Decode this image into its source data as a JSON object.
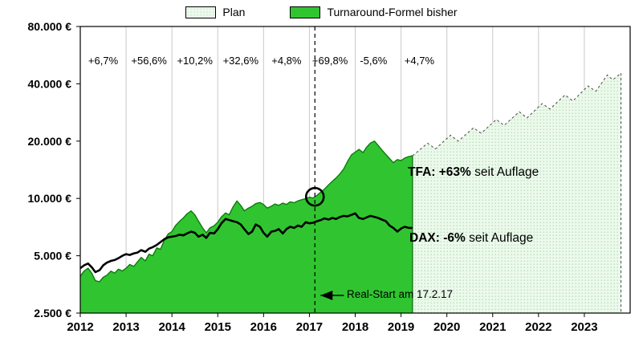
{
  "legend": {
    "plan_label": "Plan",
    "tfa_label": "Turnaround-Formel bisher"
  },
  "colors": {
    "tfa_fill": "#30c530",
    "tfa_edge": "#0e7a0e",
    "plan_fill": "#ecf9ec",
    "plan_dot": "#a8d8a8",
    "plan_edge": "#4a4a4a",
    "dax_line": "#000000",
    "grid": "#c9c9c9"
  },
  "annotations": {
    "tfa_bold": "TFA: +63%",
    "tfa_rest": " seit Auflage",
    "dax_bold": "DAX: -6%",
    "dax_rest": " seit Auflage",
    "real_start": "Real-Start am 17.2.17",
    "yearly_returns": [
      {
        "x": 2012.5,
        "label": "+6,7%"
      },
      {
        "x": 2013.5,
        "label": "+56,6%"
      },
      {
        "x": 2014.5,
        "label": "+10,2%"
      },
      {
        "x": 2015.5,
        "label": "+32,6%"
      },
      {
        "x": 2016.5,
        "label": "+4,8%"
      },
      {
        "x": 2017.45,
        "label": "+69,8%"
      },
      {
        "x": 2018.4,
        "label": "-5,6%"
      },
      {
        "x": 2019.4,
        "label": "+4,7%"
      }
    ]
  },
  "chart_data": {
    "type": "area",
    "y_scale": "log",
    "x_range": [
      2012,
      2024
    ],
    "y_range": [
      2500,
      80000
    ],
    "x_ticks": [
      2012,
      2013,
      2014,
      2015,
      2016,
      2017,
      2018,
      2019,
      2020,
      2021,
      2022,
      2023
    ],
    "y_ticks": [
      {
        "value": 80000,
        "label": "80.000 €"
      },
      {
        "value": 40000,
        "label": "40.000 €"
      },
      {
        "value": 20000,
        "label": "20.000 €"
      },
      {
        "value": 10000,
        "label": "10.000 €"
      },
      {
        "value": 5000,
        "label": "5.000 €"
      },
      {
        "value": 2500,
        "label": "2.500 €"
      }
    ],
    "real_start_x": 2017.12,
    "marker": {
      "x": 2017.12,
      "y": 10200
    },
    "series": [
      {
        "name": "Plan",
        "role": "plan",
        "points": [
          [
            2019.25,
            16750
          ],
          [
            2019.58,
            19500
          ],
          [
            2019.75,
            18200
          ],
          [
            2020.08,
            21500
          ],
          [
            2020.25,
            20000
          ],
          [
            2020.58,
            23500
          ],
          [
            2020.75,
            22000
          ],
          [
            2021.08,
            26000
          ],
          [
            2021.25,
            24200
          ],
          [
            2021.58,
            28500
          ],
          [
            2021.75,
            26500
          ],
          [
            2022.08,
            31500
          ],
          [
            2022.25,
            29500
          ],
          [
            2022.58,
            35000
          ],
          [
            2022.75,
            32500
          ],
          [
            2023.08,
            39000
          ],
          [
            2023.25,
            36500
          ],
          [
            2023.5,
            44500
          ],
          [
            2023.62,
            42000
          ],
          [
            2023.8,
            45500
          ]
        ]
      },
      {
        "name": "Turnaround-Formel bisher",
        "role": "tfa",
        "points": [
          [
            2012.0,
            3900
          ],
          [
            2012.08,
            4150
          ],
          [
            2012.17,
            4300
          ],
          [
            2012.25,
            4050
          ],
          [
            2012.33,
            3700
          ],
          [
            2012.42,
            3650
          ],
          [
            2012.5,
            3850
          ],
          [
            2012.58,
            3950
          ],
          [
            2012.67,
            4150
          ],
          [
            2012.75,
            4050
          ],
          [
            2012.83,
            4250
          ],
          [
            2012.92,
            4160
          ],
          [
            2013.0,
            4300
          ],
          [
            2013.08,
            4500
          ],
          [
            2013.17,
            4400
          ],
          [
            2013.25,
            4650
          ],
          [
            2013.33,
            4900
          ],
          [
            2013.42,
            4700
          ],
          [
            2013.5,
            5100
          ],
          [
            2013.58,
            5000
          ],
          [
            2013.67,
            5500
          ],
          [
            2013.75,
            5400
          ],
          [
            2013.83,
            6000
          ],
          [
            2013.92,
            6510
          ],
          [
            2014.0,
            6700
          ],
          [
            2014.08,
            7200
          ],
          [
            2014.17,
            7600
          ],
          [
            2014.25,
            7900
          ],
          [
            2014.33,
            8300
          ],
          [
            2014.42,
            8600
          ],
          [
            2014.5,
            8200
          ],
          [
            2014.58,
            7600
          ],
          [
            2014.67,
            7000
          ],
          [
            2014.75,
            6600
          ],
          [
            2014.83,
            7000
          ],
          [
            2014.92,
            7180
          ],
          [
            2015.0,
            7500
          ],
          [
            2015.08,
            8000
          ],
          [
            2015.17,
            8400
          ],
          [
            2015.25,
            8200
          ],
          [
            2015.33,
            9000
          ],
          [
            2015.42,
            9700
          ],
          [
            2015.5,
            9200
          ],
          [
            2015.58,
            8600
          ],
          [
            2015.67,
            8900
          ],
          [
            2015.75,
            9100
          ],
          [
            2015.83,
            9400
          ],
          [
            2015.92,
            9520
          ],
          [
            2016.0,
            9300
          ],
          [
            2016.08,
            8900
          ],
          [
            2016.17,
            9100
          ],
          [
            2016.25,
            9350
          ],
          [
            2016.33,
            9200
          ],
          [
            2016.42,
            9450
          ],
          [
            2016.5,
            9300
          ],
          [
            2016.58,
            9600
          ],
          [
            2016.67,
            9500
          ],
          [
            2016.75,
            9700
          ],
          [
            2016.83,
            9850
          ],
          [
            2016.92,
            9980
          ],
          [
            2017.0,
            10150
          ],
          [
            2017.08,
            10050
          ],
          [
            2017.17,
            10400
          ],
          [
            2017.25,
            10800
          ],
          [
            2017.33,
            11200
          ],
          [
            2017.42,
            11800
          ],
          [
            2017.5,
            12300
          ],
          [
            2017.58,
            12800
          ],
          [
            2017.67,
            13500
          ],
          [
            2017.75,
            14300
          ],
          [
            2017.83,
            15600
          ],
          [
            2017.92,
            16950
          ],
          [
            2018.0,
            17500
          ],
          [
            2018.08,
            18100
          ],
          [
            2018.17,
            17400
          ],
          [
            2018.25,
            18600
          ],
          [
            2018.33,
            19500
          ],
          [
            2018.42,
            20000
          ],
          [
            2018.5,
            19000
          ],
          [
            2018.58,
            18000
          ],
          [
            2018.67,
            17000
          ],
          [
            2018.75,
            16200
          ],
          [
            2018.83,
            15400
          ],
          [
            2018.92,
            16000
          ],
          [
            2019.0,
            15800
          ],
          [
            2019.08,
            16300
          ],
          [
            2019.17,
            16600
          ],
          [
            2019.25,
            16750
          ]
        ]
      },
      {
        "name": "DAX",
        "role": "dax",
        "points": [
          [
            2012.0,
            4300
          ],
          [
            2012.08,
            4450
          ],
          [
            2012.17,
            4550
          ],
          [
            2012.25,
            4350
          ],
          [
            2012.33,
            4100
          ],
          [
            2012.42,
            4200
          ],
          [
            2012.5,
            4450
          ],
          [
            2012.58,
            4600
          ],
          [
            2012.67,
            4700
          ],
          [
            2012.75,
            4750
          ],
          [
            2012.83,
            4850
          ],
          [
            2012.92,
            5000
          ],
          [
            2013.0,
            5100
          ],
          [
            2013.08,
            5050
          ],
          [
            2013.17,
            5150
          ],
          [
            2013.25,
            5200
          ],
          [
            2013.33,
            5350
          ],
          [
            2013.42,
            5250
          ],
          [
            2013.5,
            5450
          ],
          [
            2013.58,
            5550
          ],
          [
            2013.67,
            5700
          ],
          [
            2013.75,
            5900
          ],
          [
            2013.83,
            6100
          ],
          [
            2013.92,
            6250
          ],
          [
            2014.0,
            6300
          ],
          [
            2014.08,
            6350
          ],
          [
            2014.17,
            6450
          ],
          [
            2014.25,
            6400
          ],
          [
            2014.33,
            6550
          ],
          [
            2014.42,
            6700
          ],
          [
            2014.5,
            6600
          ],
          [
            2014.58,
            6300
          ],
          [
            2014.67,
            6450
          ],
          [
            2014.75,
            6200
          ],
          [
            2014.83,
            6600
          ],
          [
            2014.92,
            6550
          ],
          [
            2015.0,
            6900
          ],
          [
            2015.08,
            7400
          ],
          [
            2015.17,
            7800
          ],
          [
            2015.25,
            7700
          ],
          [
            2015.33,
            7600
          ],
          [
            2015.42,
            7500
          ],
          [
            2015.5,
            7300
          ],
          [
            2015.58,
            6900
          ],
          [
            2015.67,
            6500
          ],
          [
            2015.75,
            6700
          ],
          [
            2015.83,
            7300
          ],
          [
            2015.92,
            7100
          ],
          [
            2016.0,
            6600
          ],
          [
            2016.08,
            6300
          ],
          [
            2016.17,
            6700
          ],
          [
            2016.25,
            6750
          ],
          [
            2016.33,
            6900
          ],
          [
            2016.42,
            6550
          ],
          [
            2016.5,
            6900
          ],
          [
            2016.58,
            7100
          ],
          [
            2016.67,
            7000
          ],
          [
            2016.75,
            7200
          ],
          [
            2016.83,
            7100
          ],
          [
            2016.92,
            7500
          ],
          [
            2017.0,
            7400
          ],
          [
            2017.08,
            7450
          ],
          [
            2017.17,
            7600
          ],
          [
            2017.25,
            7700
          ],
          [
            2017.33,
            7850
          ],
          [
            2017.42,
            7750
          ],
          [
            2017.5,
            7900
          ],
          [
            2017.58,
            7800
          ],
          [
            2017.67,
            8000
          ],
          [
            2017.75,
            8100
          ],
          [
            2017.83,
            8050
          ],
          [
            2017.92,
            8200
          ],
          [
            2018.0,
            8350
          ],
          [
            2018.08,
            7900
          ],
          [
            2018.17,
            7800
          ],
          [
            2018.25,
            7950
          ],
          [
            2018.33,
            8100
          ],
          [
            2018.42,
            8000
          ],
          [
            2018.5,
            7900
          ],
          [
            2018.58,
            7750
          ],
          [
            2018.67,
            7600
          ],
          [
            2018.75,
            7200
          ],
          [
            2018.83,
            7000
          ],
          [
            2018.92,
            6700
          ],
          [
            2019.0,
            6950
          ],
          [
            2019.08,
            7100
          ],
          [
            2019.17,
            7000
          ],
          [
            2019.25,
            7000
          ]
        ]
      }
    ]
  }
}
